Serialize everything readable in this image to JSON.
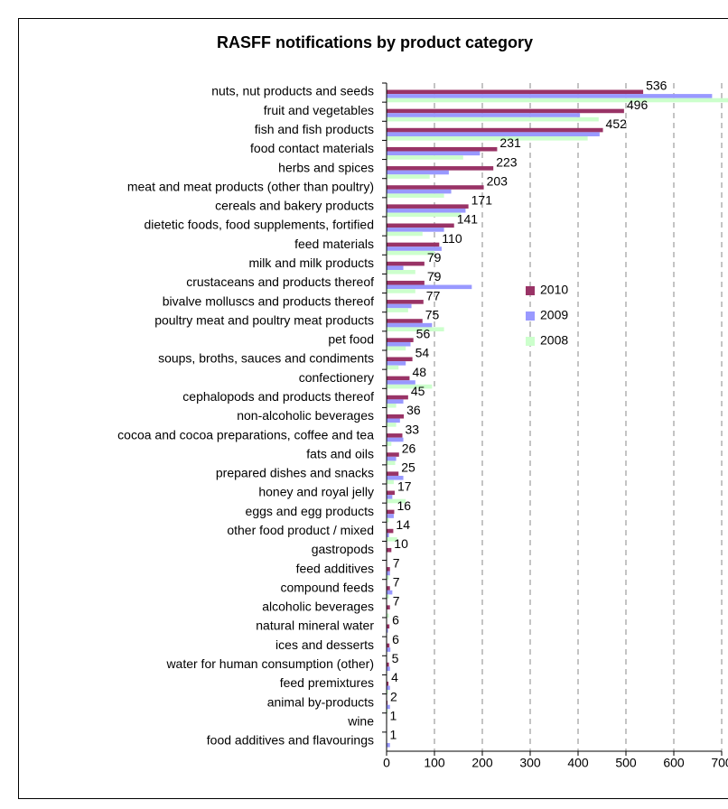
{
  "chart_data": {
    "type": "hbar",
    "title": "RASFF notifications by product category",
    "categories": [
      "nuts, nut products and seeds",
      "fruit and vegetables",
      "fish and fish products",
      "food contact materials",
      "herbs and spices",
      "meat and meat products (other than poultry)",
      "cereals and bakery products",
      "dietetic foods, food supplements, fortified",
      "feed materials",
      "milk and milk products",
      "crustaceans and products thereof",
      "bivalve molluscs and products thereof",
      "poultry meat and poultry meat products",
      "pet food",
      "soups, broths, sauces and condiments",
      "confectionery",
      "cephalopods and products thereof",
      "non-alcoholic beverages",
      "cocoa and cocoa preparations, coffee and tea",
      "fats and oils",
      "prepared dishes and snacks",
      "honey and royal jelly",
      "eggs and egg products",
      "other food product / mixed",
      "gastropods",
      "feed additives",
      "compound feeds",
      "alcoholic beverages",
      "natural mineral water",
      "ices and desserts",
      "water for human consumption (other)",
      "feed premixtures",
      "animal by-products",
      "wine",
      "food additives and flavourings"
    ],
    "series": [
      {
        "name": "2010",
        "color": "#993366",
        "values": [
          536,
          496,
          452,
          231,
          223,
          203,
          171,
          141,
          110,
          79,
          79,
          77,
          75,
          56,
          54,
          48,
          45,
          36,
          33,
          26,
          25,
          17,
          16,
          14,
          10,
          7,
          7,
          7,
          6,
          6,
          5,
          4,
          2,
          1,
          1
        ]
      },
      {
        "name": "2009",
        "color": "#9999ff",
        "values": [
          680,
          404,
          445,
          195,
          130,
          135,
          165,
          120,
          115,
          35,
          178,
          52,
          95,
          50,
          40,
          60,
          35,
          28,
          35,
          20,
          35,
          12,
          15,
          5,
          0,
          7,
          12,
          0,
          3,
          8,
          7,
          7,
          7,
          0,
          7
        ]
      },
      {
        "name": "2008",
        "color": "#ccffcc",
        "values": [
          720,
          443,
          420,
          160,
          90,
          120,
          155,
          75,
          100,
          60,
          60,
          45,
          120,
          40,
          25,
          95,
          20,
          20,
          10,
          18,
          15,
          40,
          5,
          22,
          0,
          5,
          5,
          5,
          0,
          0,
          0,
          3,
          2,
          0,
          0
        ]
      }
    ],
    "show_value_labels_series": 0,
    "xlim": [
      0,
      700
    ],
    "xticks": [
      0,
      100,
      200,
      300,
      400,
      500,
      600,
      700
    ],
    "grid": true,
    "legend": "center right"
  }
}
